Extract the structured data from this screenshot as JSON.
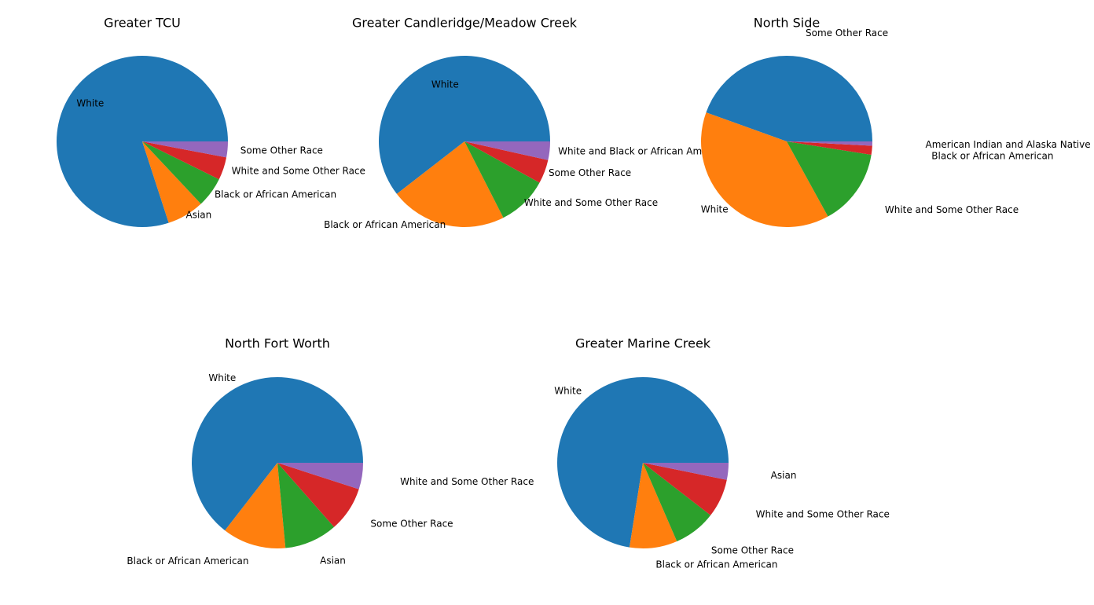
{
  "colors": [
    "#1f77b4",
    "#ff7f0e",
    "#2ca02c",
    "#d62728",
    "#9467bd"
  ],
  "chart_data": [
    {
      "type": "pie",
      "title": "Greater TCU",
      "slices": [
        {
          "label": "White",
          "value": 80.0,
          "color": "#1f77b4"
        },
        {
          "label": "Asian",
          "value": 7.0,
          "color": "#ff7f0e"
        },
        {
          "label": "Black or African American",
          "value": 5.7,
          "color": "#2ca02c"
        },
        {
          "label": "White and Some Other Race",
          "value": 4.3,
          "color": "#d62728"
        },
        {
          "label": "Some Other Race",
          "value": 3.0,
          "color": "#9467bd"
        }
      ]
    },
    {
      "type": "pie",
      "title": "Greater Candleridge/Meadow Creek",
      "slices": [
        {
          "label": "White",
          "value": 60.5,
          "color": "#1f77b4"
        },
        {
          "label": "Black or African American",
          "value": 22.0,
          "color": "#ff7f0e"
        },
        {
          "label": "White and Some Other Race",
          "value": 9.5,
          "color": "#2ca02c"
        },
        {
          "label": "Some Other Race",
          "value": 4.5,
          "color": "#d62728"
        },
        {
          "label": "White and Black or African American",
          "value": 3.5,
          "color": "#9467bd"
        }
      ]
    },
    {
      "type": "pie",
      "title": "North Side",
      "slices": [
        {
          "label": "Some Other Race",
          "value": 44.5,
          "color": "#1f77b4"
        },
        {
          "label": "White",
          "value": 38.5,
          "color": "#ff7f0e"
        },
        {
          "label": "White and Some Other Race",
          "value": 14.5,
          "color": "#2ca02c"
        },
        {
          "label": "Black or African American",
          "value": 1.7,
          "color": "#d62728"
        },
        {
          "label": "American Indian and Alaska Native",
          "value": 0.8,
          "color": "#9467bd"
        }
      ]
    },
    {
      "type": "pie",
      "title": "North Fort Worth",
      "slices": [
        {
          "label": "White",
          "value": 64.5,
          "color": "#1f77b4"
        },
        {
          "label": "Black or African American",
          "value": 12.0,
          "color": "#ff7f0e"
        },
        {
          "label": "Asian",
          "value": 10.0,
          "color": "#2ca02c"
        },
        {
          "label": "Some Other Race",
          "value": 8.5,
          "color": "#d62728"
        },
        {
          "label": "White and Some Other Race",
          "value": 5.0,
          "color": "#9467bd"
        }
      ]
    },
    {
      "type": "pie",
      "title": "Greater Marine Creek",
      "slices": [
        {
          "label": "White",
          "value": 72.5,
          "color": "#1f77b4"
        },
        {
          "label": "Black or African American",
          "value": 9.0,
          "color": "#ff7f0e"
        },
        {
          "label": "Some Other Race",
          "value": 8.0,
          "color": "#2ca02c"
        },
        {
          "label": "White and Some Other Race",
          "value": 7.3,
          "color": "#d62728"
        },
        {
          "label": "Asian",
          "value": 3.2,
          "color": "#9467bd"
        }
      ]
    }
  ]
}
